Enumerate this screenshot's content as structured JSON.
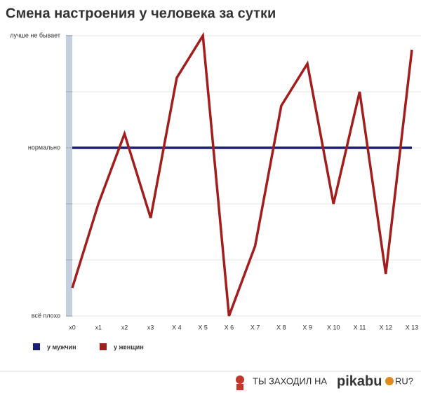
{
  "chart_data": {
    "type": "line",
    "title": "Смена настроения у человека за сутки",
    "categories": [
      "x0",
      "x1",
      "x2",
      "x3",
      "X 4",
      "X 5",
      "X 6",
      "X 7",
      "X 8",
      "X 9",
      "X 10",
      "X 11",
      "X 12",
      "X 13"
    ],
    "series": [
      {
        "name": "у мужчин",
        "color": "#1b1f78",
        "values": [
          3,
          3,
          3,
          3,
          3,
          3,
          3,
          3,
          3,
          3,
          3,
          3,
          3,
          3
        ]
      },
      {
        "name": "у женщин",
        "color": "#a31d1d",
        "values": [
          0.5,
          2,
          3.25,
          1.75,
          4.25,
          5,
          0,
          1.25,
          3.75,
          4.5,
          2,
          4,
          0.75,
          4.75
        ]
      }
    ],
    "ylim": [
      0,
      5
    ],
    "yticks": [
      {
        "value": 0,
        "label": "всё плохо"
      },
      {
        "value": 1,
        "label": null
      },
      {
        "value": 2,
        "label": null
      },
      {
        "value": 3,
        "label": "нормально"
      },
      {
        "value": 4,
        "label": null
      },
      {
        "value": 5,
        "label": "лучше не бывает"
      }
    ],
    "grid": true,
    "legend": "bottom-left"
  },
  "footer": {
    "text": "ТЫ ЗАХОДИЛ НА",
    "brand": "pikabu",
    "suffix": "RU?"
  }
}
